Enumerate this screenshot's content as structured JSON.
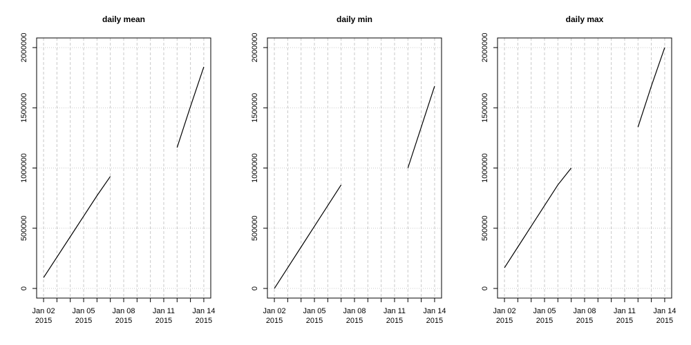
{
  "chart_data": [
    {
      "type": "line",
      "title": "daily mean",
      "x": [
        "2015-01-02",
        "2015-01-03",
        "2015-01-04",
        "2015-01-05",
        "2015-01-06",
        "2015-01-07",
        "2015-01-08",
        "2015-01-09",
        "2015-01-10",
        "2015-01-11",
        "2015-01-12",
        "2015-01-13",
        "2015-01-14"
      ],
      "values": [
        90000,
        260000,
        430000,
        600000,
        770000,
        930000,
        null,
        null,
        null,
        null,
        1170000,
        1510000,
        1840000
      ],
      "color": "#000000",
      "xlim": [
        "2015-01-01T11:30:00Z",
        "2015-01-14T12:30:00Z"
      ],
      "xticks": [
        {
          "value": "2015-01-02",
          "label": "Jan 02\n2015"
        },
        {
          "value": "2015-01-05",
          "label": "Jan 05\n2015"
        },
        {
          "value": "2015-01-08",
          "label": "Jan 08\n2015"
        },
        {
          "value": "2015-01-11",
          "label": "Jan 11\n2015"
        },
        {
          "value": "2015-01-14",
          "label": "Jan 14\n2015"
        }
      ],
      "ylim": [
        -80000,
        2080000
      ],
      "yticks": [
        0,
        500000,
        1000000,
        1500000,
        2000000
      ],
      "grid": true
    },
    {
      "type": "line",
      "title": "daily min",
      "x": [
        "2015-01-02",
        "2015-01-03",
        "2015-01-04",
        "2015-01-05",
        "2015-01-06",
        "2015-01-07",
        "2015-01-08",
        "2015-01-09",
        "2015-01-10",
        "2015-01-11",
        "2015-01-12",
        "2015-01-13",
        "2015-01-14"
      ],
      "values": [
        0,
        172000,
        344000,
        516000,
        688000,
        860000,
        null,
        null,
        null,
        null,
        1000000,
        1340000,
        1680000
      ],
      "color": "#000000",
      "xlim": [
        "2015-01-01T11:30:00Z",
        "2015-01-14T12:30:00Z"
      ],
      "xticks": [
        {
          "value": "2015-01-02",
          "label": "Jan 02\n2015"
        },
        {
          "value": "2015-01-05",
          "label": "Jan 05\n2015"
        },
        {
          "value": "2015-01-08",
          "label": "Jan 08\n2015"
        },
        {
          "value": "2015-01-11",
          "label": "Jan 11\n2015"
        },
        {
          "value": "2015-01-14",
          "label": "Jan 14\n2015"
        }
      ],
      "ylim": [
        -80000,
        2080000
      ],
      "yticks": [
        0,
        500000,
        1000000,
        1500000,
        2000000
      ],
      "grid": true
    },
    {
      "type": "line",
      "title": "daily max",
      "x": [
        "2015-01-02",
        "2015-01-03",
        "2015-01-04",
        "2015-01-05",
        "2015-01-06",
        "2015-01-07",
        "2015-01-08",
        "2015-01-09",
        "2015-01-10",
        "2015-01-11",
        "2015-01-12",
        "2015-01-13",
        "2015-01-14"
      ],
      "values": [
        172000,
        344000,
        516000,
        688000,
        860000,
        1000000,
        null,
        null,
        null,
        null,
        1340000,
        1680000,
        2000000
      ],
      "color": "#000000",
      "xlim": [
        "2015-01-01T11:30:00Z",
        "2015-01-14T12:30:00Z"
      ],
      "xticks": [
        {
          "value": "2015-01-02",
          "label": "Jan 02\n2015"
        },
        {
          "value": "2015-01-05",
          "label": "Jan 05\n2015"
        },
        {
          "value": "2015-01-08",
          "label": "Jan 08\n2015"
        },
        {
          "value": "2015-01-11",
          "label": "Jan 11\n2015"
        },
        {
          "value": "2015-01-14",
          "label": "Jan 14\n2015"
        }
      ],
      "ylim": [
        -80000,
        2080000
      ],
      "yticks": [
        0,
        500000,
        1000000,
        1500000,
        2000000
      ],
      "grid": true
    }
  ]
}
